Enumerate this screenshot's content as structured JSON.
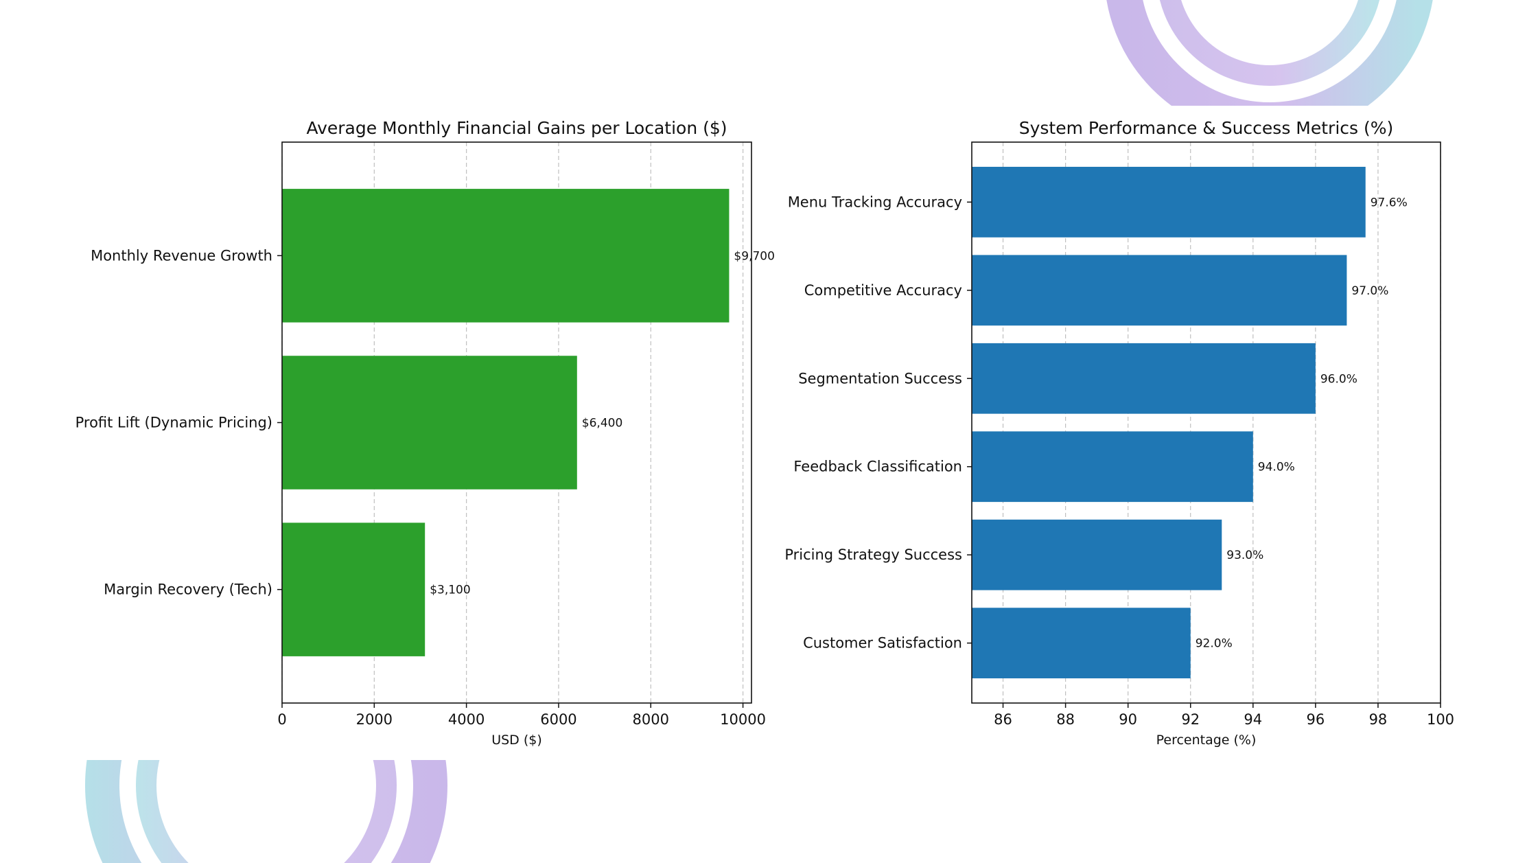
{
  "chart_data": [
    {
      "type": "bar",
      "orientation": "horizontal",
      "title": "Average Monthly Financial Gains per Location ($)",
      "xlabel": "USD ($)",
      "ylabel": "",
      "categories": [
        "Monthly Revenue Growth",
        "Profit Lift (Dynamic Pricing)",
        "Margin Recovery (Tech)"
      ],
      "values": [
        9700,
        6400,
        3100
      ],
      "value_labels": [
        "$9,700",
        "$6,400",
        "$3,100"
      ],
      "xlim": [
        0,
        10185
      ],
      "xticks": [
        "0",
        "2000",
        "4000",
        "6000",
        "8000",
        "10000"
      ],
      "grid": "x-dashed",
      "color": "#2ca02c"
    },
    {
      "type": "bar",
      "orientation": "horizontal",
      "title": "System Performance & Success Metrics (%)",
      "xlabel": "Percentage (%)",
      "ylabel": "",
      "categories": [
        "Menu Tracking Accuracy",
        "Competitive Accuracy",
        "Segmentation Success",
        "Feedback Classification",
        "Pricing Strategy Success",
        "Customer Satisfaction"
      ],
      "values": [
        97.6,
        97.0,
        96.0,
        94.0,
        93.0,
        92.0
      ],
      "value_labels": [
        "97.6%",
        "97.0%",
        "96.0%",
        "94.0%",
        "93.0%",
        "92.0%"
      ],
      "xlim": [
        85,
        100
      ],
      "xticks": [
        "86",
        "88",
        "90",
        "92",
        "94",
        "96",
        "98",
        "100"
      ],
      "grid": "x-dashed",
      "color": "#1f77b4"
    }
  ],
  "decoration": {
    "ring_colors": [
      "#c9b8ea",
      "#b5e0e8"
    ]
  }
}
